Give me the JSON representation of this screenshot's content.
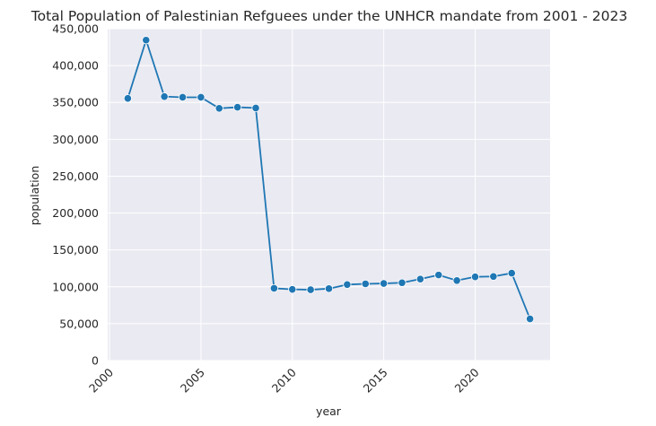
{
  "chart_data": {
    "type": "line",
    "title": "Total Population of Palestinian Refguees under the UNHCR mandate from 2001 - 2023",
    "xlabel": "year",
    "ylabel": "population",
    "xlim": [
      1999.9,
      2024.1
    ],
    "ylim": [
      0,
      450000
    ],
    "xticks": [
      2000,
      2005,
      2010,
      2015,
      2020
    ],
    "xtick_labels": [
      "2000",
      "2005",
      "2010",
      "2015",
      "2020"
    ],
    "yticks": [
      0,
      50000,
      100000,
      150000,
      200000,
      250000,
      300000,
      350000,
      400000,
      450000
    ],
    "ytick_labels": [
      "0",
      "50,000",
      "100,000",
      "150,000",
      "200,000",
      "250,000",
      "300,000",
      "350,000",
      "400,000",
      "450,000"
    ],
    "grid": true,
    "x": [
      2001,
      2002,
      2003,
      2004,
      2005,
      2006,
      2007,
      2008,
      2009,
      2010,
      2011,
      2012,
      2013,
      2014,
      2015,
      2016,
      2017,
      2018,
      2019,
      2020,
      2021,
      2022,
      2023
    ],
    "series": [
      {
        "color": "#1f77b4",
        "values": [
          355500,
          434500,
          358000,
          357000,
          357000,
          342000,
          343500,
          342500,
          98000,
          96500,
          96000,
          97500,
          103000,
          104000,
          104500,
          105500,
          110500,
          116000,
          108500,
          113500,
          114000,
          118500,
          56500
        ]
      }
    ]
  }
}
